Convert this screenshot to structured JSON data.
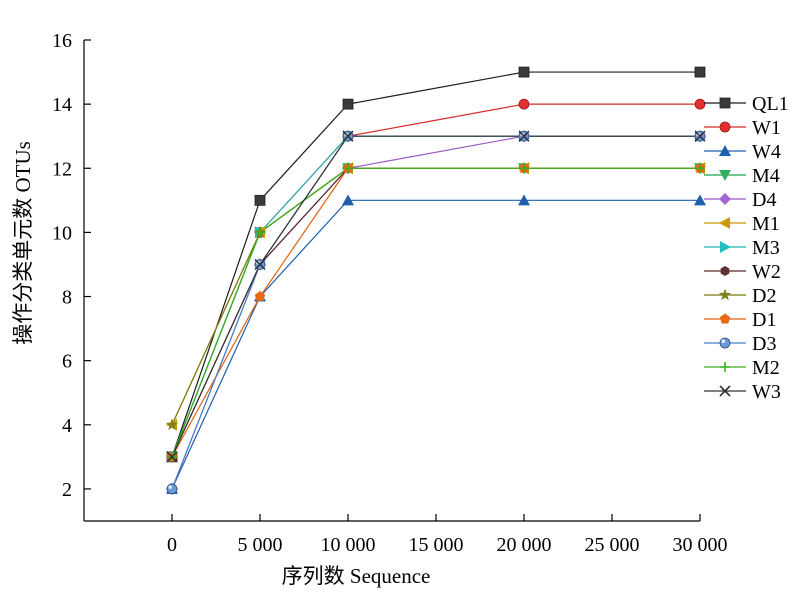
{
  "chart_data": {
    "type": "line",
    "title": "",
    "xlabel": "序列数 Sequence",
    "ylabel": "操作分类单元数 OTUs",
    "xlim": [
      -5000,
      30000
    ],
    "ylim": [
      1,
      16
    ],
    "x_ticks": [
      0,
      5000,
      10000,
      15000,
      20000,
      25000,
      30000
    ],
    "x_tick_labels": [
      "0",
      "5 000",
      "10 000",
      "15 000",
      "20 000",
      "25 000",
      "30 000"
    ],
    "y_ticks": [
      2,
      4,
      6,
      8,
      10,
      12,
      14,
      16
    ],
    "y_tick_labels": [
      "2",
      "4",
      "6",
      "8",
      "10",
      "12",
      "14",
      "16"
    ],
    "grid": false,
    "legend_position": "right",
    "x": [
      0,
      5000,
      10000,
      20000,
      30000
    ],
    "series": [
      {
        "name": "QL1",
        "values": [
          3,
          11,
          14,
          15,
          15
        ],
        "color": "#1a1a1a",
        "marker": "square",
        "marker_color": "#3a3a3a"
      },
      {
        "name": "W1",
        "values": [
          3,
          10,
          13,
          14,
          14
        ],
        "color": "#d42a2a",
        "marker": "circle",
        "marker_color": "#e03030"
      },
      {
        "name": "W4",
        "values": [
          2,
          8,
          11,
          11,
          11
        ],
        "color": "#1f5fb0",
        "marker": "triangle-up",
        "marker_color": "#1f5fb0"
      },
      {
        "name": "M4",
        "values": [
          3,
          10,
          12,
          12,
          12
        ],
        "color": "#22a050",
        "marker": "triangle-down",
        "marker_color": "#2eb060"
      },
      {
        "name": "D4",
        "values": [
          2,
          9,
          12,
          13,
          13
        ],
        "color": "#9b59c6",
        "marker": "diamond",
        "marker_color": "#a566d0"
      },
      {
        "name": "M1",
        "values": [
          4,
          10,
          12,
          12,
          12
        ],
        "color": "#c79a00",
        "marker": "triangle-left",
        "marker_color": "#c89b00"
      },
      {
        "name": "M3",
        "values": [
          3,
          10,
          13,
          13,
          13
        ],
        "color": "#1fb5b5",
        "marker": "triangle-right",
        "marker_color": "#22c0c0"
      },
      {
        "name": "W2",
        "values": [
          3,
          9,
          12,
          12,
          12
        ],
        "color": "#5a2a2a",
        "marker": "hexagon",
        "marker_color": "#5e3232"
      },
      {
        "name": "D2",
        "values": [
          4,
          10,
          12,
          12,
          12
        ],
        "color": "#7a7a10",
        "marker": "star",
        "marker_color": "#808018"
      },
      {
        "name": "D1",
        "values": [
          3,
          8,
          12,
          12,
          12
        ],
        "color": "#e06010",
        "marker": "pentagon",
        "marker_color": "#e86814"
      },
      {
        "name": "D3",
        "values": [
          2,
          9,
          13,
          13,
          13
        ],
        "color": "#4a80c8",
        "marker": "sphere",
        "marker_color": "#6b9ad8"
      },
      {
        "name": "M2",
        "values": [
          3,
          10,
          12,
          12,
          12
        ],
        "color": "#3cb020",
        "marker": "plus",
        "marker_color": "#3cb020"
      },
      {
        "name": "W3",
        "values": [
          3,
          9,
          13,
          13,
          13
        ],
        "color": "#333333",
        "marker": "x",
        "marker_color": "#333333"
      }
    ]
  }
}
